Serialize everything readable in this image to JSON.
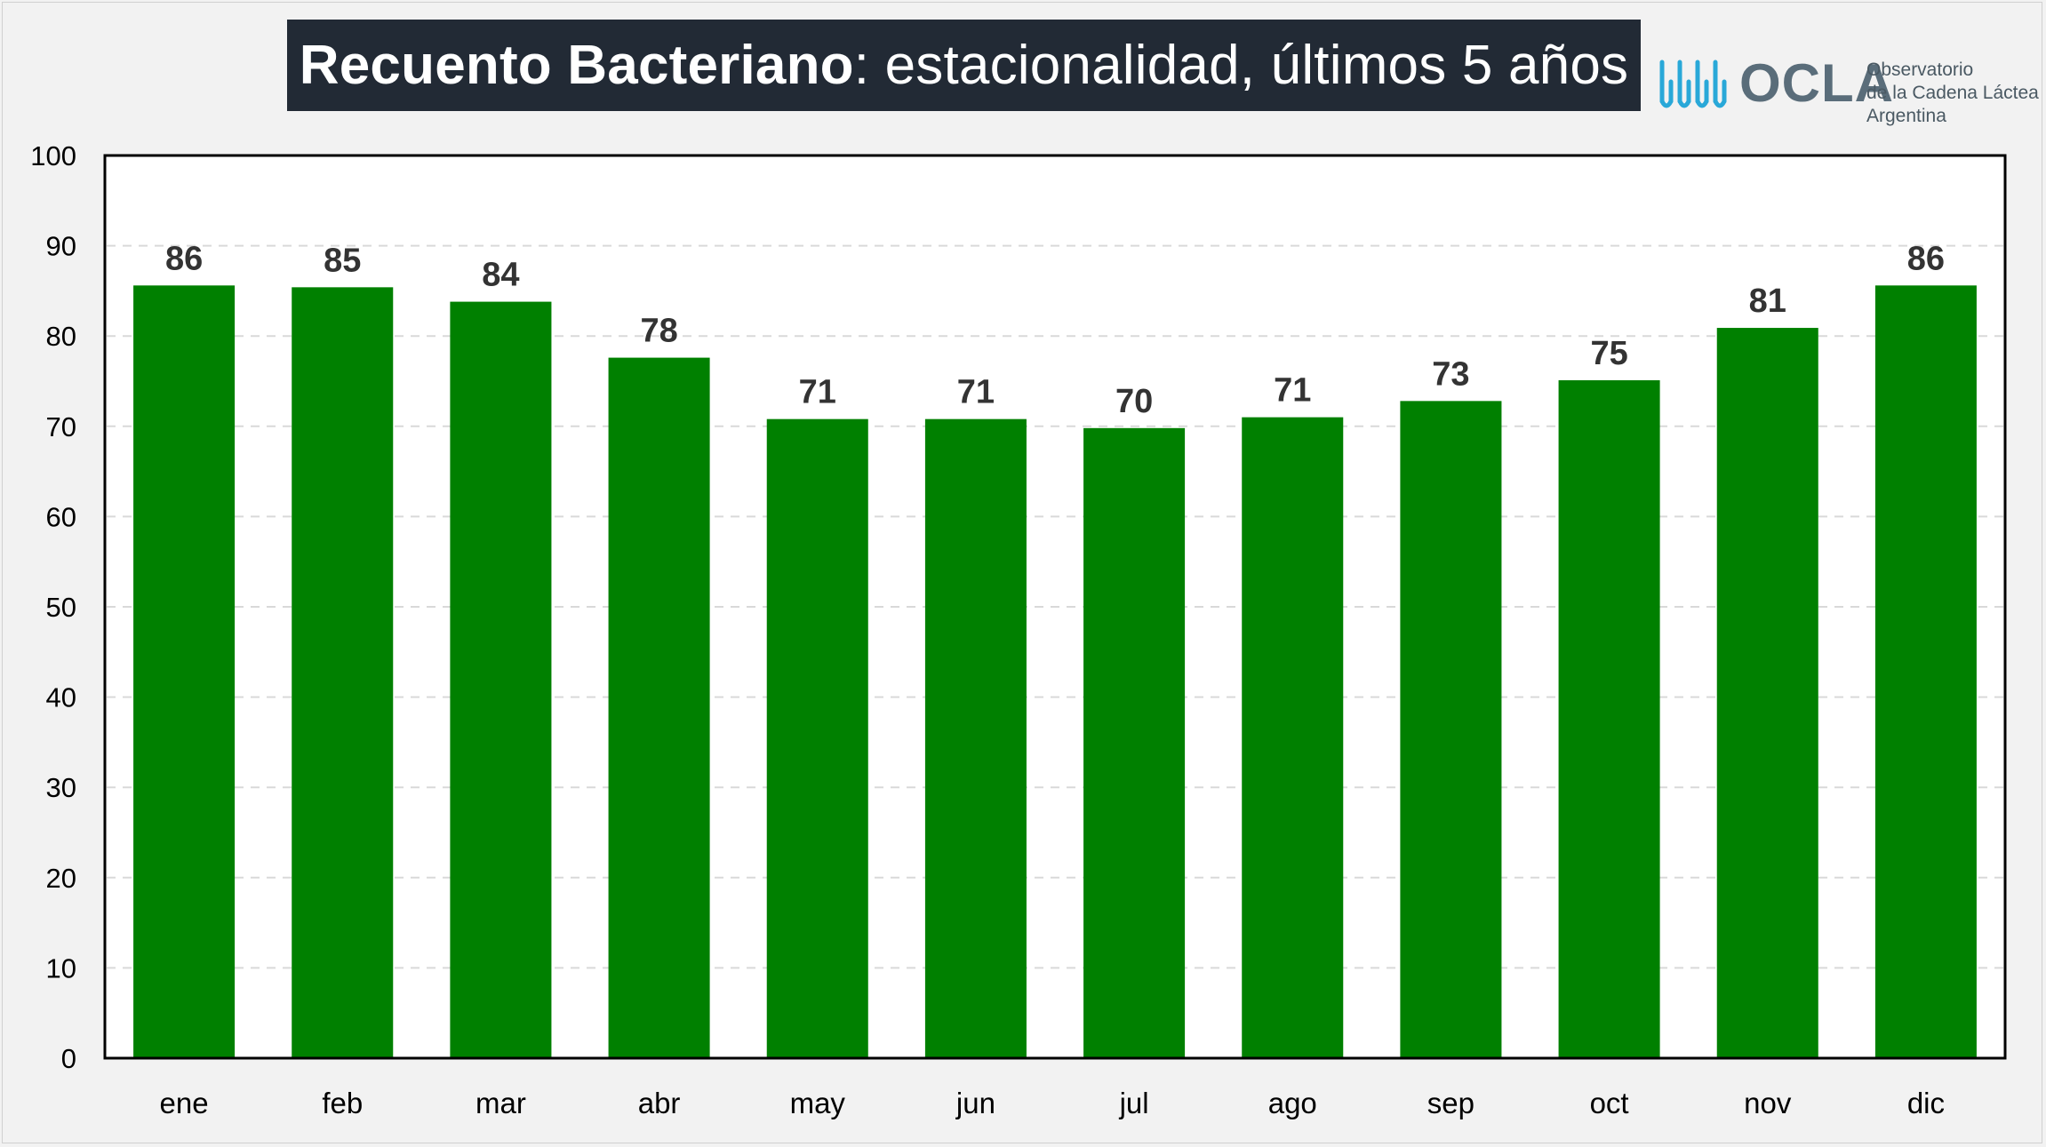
{
  "title": {
    "bold_part": "Recuento Bacteriano",
    "rest_part": ": estacionalidad, últimos 5 años"
  },
  "logo": {
    "name": "OCLA",
    "line1": "Observatorio",
    "line2": "de la Cadena Láctea",
    "line3": "Argentina"
  },
  "colors": {
    "bar": "#008000",
    "title_bg": "#222a35",
    "gridline": "#d9d9d9",
    "logo_accent": "#29a8d8"
  },
  "chart_data": {
    "type": "bar",
    "categories": [
      "ene",
      "feb",
      "mar",
      "abr",
      "may",
      "jun",
      "jul",
      "ago",
      "sep",
      "oct",
      "nov",
      "dic"
    ],
    "values": [
      85.6,
      85.4,
      83.8,
      77.6,
      70.8,
      70.8,
      69.8,
      71.0,
      72.8,
      75.1,
      80.9,
      85.6
    ],
    "data_labels": [
      "86",
      "85",
      "84",
      "78",
      "71",
      "71",
      "70",
      "71",
      "73",
      "75",
      "81",
      "86"
    ],
    "ylim": [
      0,
      100
    ],
    "yticks": [
      0,
      10,
      20,
      30,
      40,
      50,
      60,
      70,
      80,
      90,
      100
    ],
    "gridlines": "dashed horizontal",
    "legend": "none"
  }
}
